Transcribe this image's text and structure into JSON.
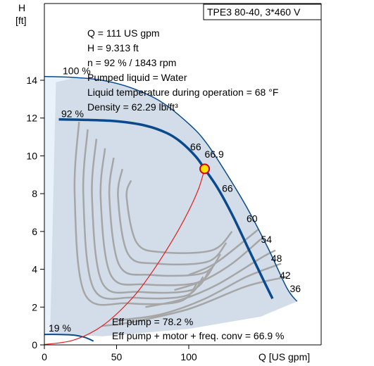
{
  "chart_data": {
    "type": "line",
    "title": "TPE3 80-40, 3*460 V",
    "xlabel": "Q [US gpm]",
    "ylabel_lines": [
      "H",
      "[ft]"
    ],
    "xlim": [
      0,
      190
    ],
    "ylim": [
      0,
      18
    ],
    "x_ticks": [
      "0",
      "50",
      "100"
    ],
    "x_tick_values": [
      0,
      50,
      100
    ],
    "y_ticks": [
      "0",
      "2",
      "4",
      "6",
      "8",
      "10",
      "12",
      "14"
    ],
    "y_tick_values": [
      0,
      2,
      4,
      6,
      8,
      10,
      12,
      14
    ],
    "grid": false,
    "duty_point": {
      "q": 111,
      "h": 9.313,
      "lines": [
        "Q = 111 US gpm",
        "H = 9.313 ft",
        "n = 92 % / 1843 rpm",
        "Pumped liquid = Water",
        "Liquid temperature during operation = 68 °F",
        "Density = 62.29 lb/ft³"
      ]
    },
    "efficiency_notes": [
      "Eff pump = 78.2 %",
      "Eff pump + motor + freq. conv = 66.9 %"
    ],
    "speed_curves": [
      {
        "label": "100 %",
        "role": "max",
        "points": [
          [
            0,
            14.2
          ],
          [
            20,
            14.15
          ],
          [
            40,
            14.0
          ],
          [
            60,
            13.6
          ],
          [
            80,
            12.9
          ],
          [
            100,
            11.7
          ],
          [
            112,
            10.7
          ],
          [
            125,
            9.2
          ],
          [
            140,
            7.3
          ],
          [
            155,
            5.1
          ],
          [
            168,
            3.0
          ],
          [
            175,
            2.3
          ]
        ]
      },
      {
        "label": "92 %",
        "role": "operating",
        "points": [
          [
            10,
            11.93
          ],
          [
            30,
            11.9
          ],
          [
            50,
            11.83
          ],
          [
            70,
            11.6
          ],
          [
            85,
            11.2
          ],
          [
            95,
            10.7
          ],
          [
            105,
            9.95
          ],
          [
            111,
            9.31
          ],
          [
            120,
            8.3
          ],
          [
            130,
            6.9
          ],
          [
            140,
            5.3
          ],
          [
            150,
            3.7
          ],
          [
            158,
            2.45
          ]
        ]
      },
      {
        "label": "19 %",
        "role": "min",
        "points": [
          [
            0,
            0.55
          ],
          [
            10,
            0.55
          ],
          [
            20,
            0.52
          ],
          [
            28,
            0.4
          ],
          [
            34,
            0.2
          ]
        ]
      }
    ],
    "efficiency_curve_labels": [
      "66",
      "66.9",
      "66",
      "60",
      "54",
      "48",
      "42",
      "36"
    ],
    "efficiency_pump_curve": {
      "points": [
        [
          0,
          0.02
        ],
        [
          20,
          0.25
        ],
        [
          40,
          1.0
        ],
        [
          60,
          2.4
        ],
        [
          75,
          3.9
        ],
        [
          90,
          5.7
        ],
        [
          100,
          7.1
        ],
        [
          107,
          8.3
        ],
        [
          111,
          9.313
        ]
      ]
    },
    "colors": {
      "area_fill": "#d2dde9",
      "area_light": "#e9f2fa",
      "speed_curve": "#0a4a8c",
      "efficiency_curves": "#a6a6a6",
      "eff_pump_curve": "#e0201e",
      "duty_point_fill": "#ffe000",
      "duty_point_stroke": "#d40000"
    }
  }
}
